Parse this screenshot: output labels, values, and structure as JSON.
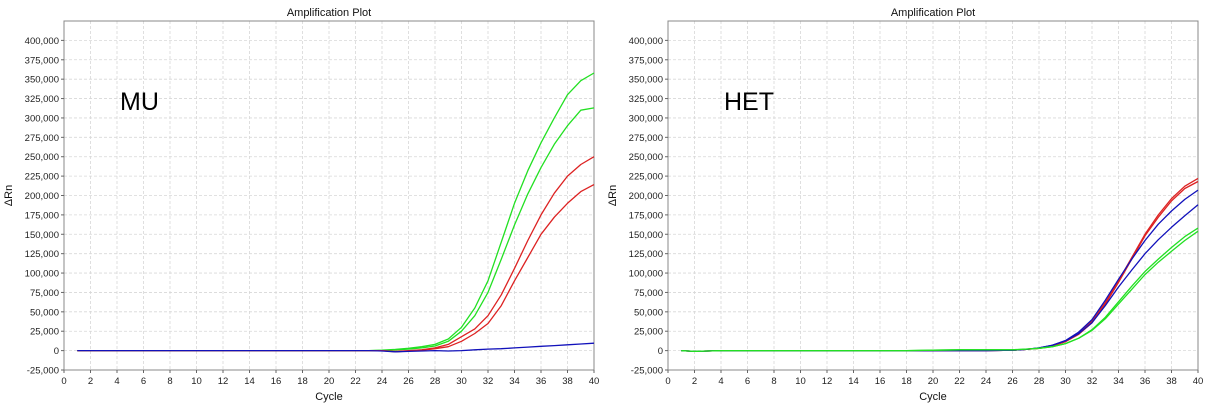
{
  "chart_data": [
    {
      "type": "line",
      "title": "Amplification Plot",
      "annotation": "MU",
      "xlabel": "Cycle",
      "ylabel": "ΔRn",
      "xlim": [
        0,
        40
      ],
      "ylim": [
        -25000,
        425000
      ],
      "xticks": [
        "0",
        "2",
        "4",
        "6",
        "8",
        "10",
        "12",
        "14",
        "16",
        "18",
        "20",
        "22",
        "24",
        "26",
        "28",
        "30",
        "32",
        "34",
        "36",
        "38",
        "40"
      ],
      "yticks": [
        "-25,000",
        "0",
        "25,000",
        "50,000",
        "75,000",
        "100,000",
        "125,000",
        "150,000",
        "175,000",
        "200,000",
        "225,000",
        "250,000",
        "275,000",
        "300,000",
        "325,000",
        "350,000",
        "375,000",
        "400,000"
      ],
      "grid": true,
      "x": [
        1,
        2,
        4,
        6,
        8,
        10,
        12,
        14,
        16,
        18,
        20,
        22,
        23,
        24,
        25,
        26,
        27,
        28,
        29,
        30,
        31,
        32,
        33,
        34,
        35,
        36,
        37,
        38,
        39,
        40
      ],
      "series": [
        {
          "color": "#22e022",
          "values": [
            0,
            0,
            0,
            0,
            0,
            0,
            0,
            0,
            0,
            0,
            0,
            0,
            0,
            500,
            1500,
            3000,
            5000,
            8000,
            15000,
            30000,
            55000,
            90000,
            140000,
            190000,
            232000,
            268000,
            300000,
            330000,
            348000,
            358000
          ]
        },
        {
          "color": "#22e022",
          "values": [
            0,
            0,
            0,
            0,
            0,
            0,
            0,
            0,
            0,
            0,
            0,
            0,
            0,
            300,
            1000,
            2000,
            3500,
            6000,
            12000,
            25000,
            45000,
            75000,
            118000,
            162000,
            202000,
            236000,
            266000,
            290000,
            310000,
            313000
          ]
        },
        {
          "color": "#dd2222",
          "values": [
            0,
            0,
            0,
            0,
            0,
            0,
            0,
            0,
            0,
            0,
            0,
            0,
            0,
            0,
            -1000,
            0,
            1000,
            3500,
            8000,
            18000,
            28000,
            45000,
            72000,
            106000,
            142000,
            175000,
            203000,
            225000,
            240000,
            250000
          ]
        },
        {
          "color": "#dd2222",
          "values": [
            0,
            0,
            0,
            0,
            0,
            0,
            0,
            0,
            0,
            0,
            0,
            0,
            0,
            0,
            -1500,
            -500,
            500,
            2500,
            5000,
            12000,
            22000,
            35000,
            58000,
            90000,
            120000,
            150000,
            172000,
            190000,
            205000,
            214000
          ]
        },
        {
          "color": "#1111bb",
          "values": [
            0,
            0,
            0,
            0,
            0,
            0,
            0,
            0,
            0,
            0,
            0,
            0,
            0,
            -500,
            -1500,
            -1000,
            -500,
            0,
            -500,
            0,
            1000,
            2000,
            2500,
            3500,
            4500,
            5500,
            6500,
            7500,
            8500,
            9500
          ]
        }
      ]
    },
    {
      "type": "line",
      "title": "Amplification Plot",
      "annotation": "HET",
      "xlabel": "Cycle",
      "ylabel": "ΔRn",
      "xlim": [
        0,
        40
      ],
      "ylim": [
        -25000,
        425000
      ],
      "xticks": [
        "0",
        "2",
        "4",
        "6",
        "8",
        "10",
        "12",
        "14",
        "16",
        "18",
        "20",
        "22",
        "24",
        "26",
        "28",
        "30",
        "32",
        "34",
        "36",
        "38",
        "40"
      ],
      "yticks": [
        "-25,000",
        "0",
        "25,000",
        "50,000",
        "75,000",
        "100,000",
        "125,000",
        "150,000",
        "175,000",
        "200,000",
        "225,000",
        "250,000",
        "275,000",
        "300,000",
        "325,000",
        "350,000",
        "375,000",
        "400,000"
      ],
      "grid": true,
      "x": [
        1,
        2,
        4,
        6,
        8,
        10,
        12,
        14,
        16,
        18,
        20,
        22,
        24,
        26,
        27,
        28,
        29,
        30,
        31,
        32,
        33,
        34,
        35,
        36,
        37,
        38,
        39,
        40
      ],
      "series": [
        {
          "color": "#dd2222",
          "values": [
            0,
            -1000,
            0,
            0,
            0,
            0,
            0,
            0,
            0,
            0,
            0,
            0,
            0,
            500,
            1500,
            3000,
            6000,
            12000,
            22000,
            38000,
            62000,
            90000,
            120000,
            150000,
            175000,
            196000,
            212000,
            222000
          ]
        },
        {
          "color": "#dd2222",
          "values": [
            0,
            -1000,
            0,
            0,
            0,
            0,
            0,
            0,
            0,
            0,
            0,
            0,
            0,
            500,
            1500,
            3000,
            6000,
            11500,
            21000,
            36000,
            60000,
            88000,
            118000,
            148000,
            172000,
            193000,
            209000,
            218000
          ]
        },
        {
          "color": "#1111bb",
          "values": [
            0,
            -1000,
            0,
            0,
            0,
            0,
            0,
            0,
            0,
            0,
            0,
            0,
            0,
            500,
            1500,
            3500,
            7000,
            13000,
            24000,
            40000,
            65000,
            92000,
            118000,
            142000,
            163000,
            180000,
            195000,
            207000
          ]
        },
        {
          "color": "#1111bb",
          "values": [
            0,
            -1000,
            0,
            0,
            0,
            0,
            0,
            0,
            0,
            0,
            0,
            0,
            0,
            500,
            1500,
            3500,
            7000,
            12500,
            22000,
            36000,
            58000,
            82000,
            104000,
            125000,
            143000,
            159000,
            174000,
            188000
          ]
        },
        {
          "color": "#22e022",
          "values": [
            0,
            -1000,
            0,
            0,
            0,
            0,
            0,
            0,
            0,
            0,
            500,
            1000,
            1000,
            1000,
            2000,
            3000,
            5000,
            9000,
            16000,
            27000,
            43000,
            63000,
            83000,
            102000,
            118000,
            133000,
            147000,
            158000
          ]
        },
        {
          "color": "#22e022",
          "values": [
            0,
            -1000,
            0,
            0,
            0,
            0,
            0,
            0,
            0,
            0,
            500,
            1000,
            1000,
            1000,
            2000,
            3000,
            5000,
            9000,
            16000,
            26000,
            41000,
            60000,
            79000,
            98000,
            114000,
            128000,
            142000,
            154000
          ]
        }
      ]
    }
  ]
}
